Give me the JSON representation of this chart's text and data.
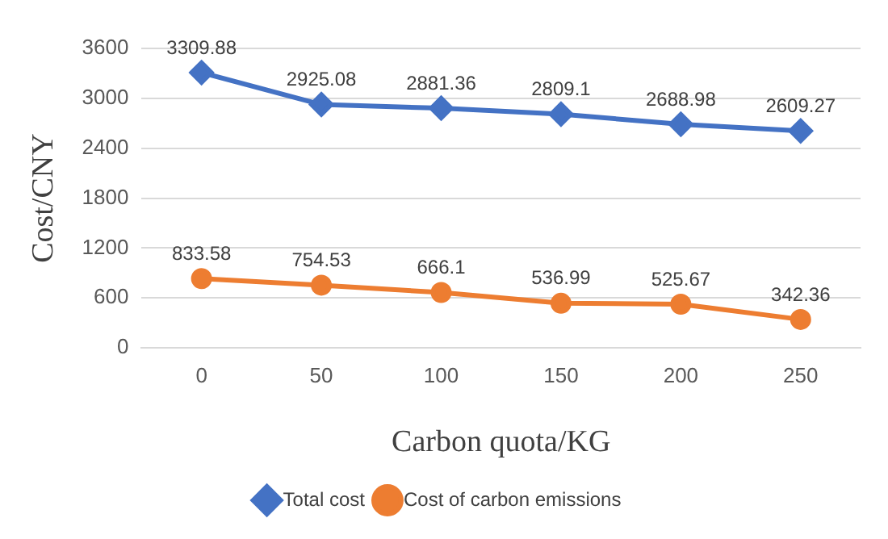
{
  "chart_data": {
    "type": "line",
    "xlabel": "Carbon quota/KG",
    "ylabel": "Cost/CNY",
    "categories": [
      "0",
      "50",
      "100",
      "150",
      "200",
      "250"
    ],
    "series": [
      {
        "name": "Total cost",
        "color": "#4472c4",
        "marker": "diamond",
        "values": [
          3309.88,
          2925.08,
          2881.36,
          2809.1,
          2688.98,
          2609.27
        ]
      },
      {
        "name": "Cost of carbon emissions",
        "color": "#ed7d31",
        "marker": "circle",
        "values": [
          833.58,
          754.53,
          666.1,
          536.99,
          525.67,
          342.36
        ]
      }
    ],
    "ylim": [
      0,
      3600
    ],
    "yticks": [
      0,
      600,
      1200,
      1800,
      2400,
      3000,
      3600
    ],
    "grid": "y",
    "legend": "bottom",
    "data_labels": true,
    "line_style": "solid"
  }
}
